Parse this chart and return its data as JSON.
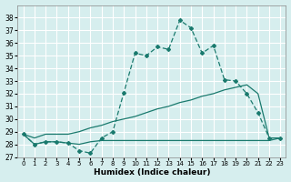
{
  "xlabel": "Humidex (Indice chaleur)",
  "bg_color": "#d6eeee",
  "grid_color": "#ffffff",
  "line_color": "#1a7a6e",
  "xlim": [
    -0.5,
    23.5
  ],
  "ylim": [
    27,
    39
  ],
  "yticks": [
    27,
    28,
    29,
    30,
    31,
    32,
    33,
    34,
    35,
    36,
    37,
    38
  ],
  "xticks": [
    0,
    1,
    2,
    3,
    4,
    5,
    6,
    7,
    8,
    9,
    10,
    11,
    12,
    13,
    14,
    15,
    16,
    17,
    18,
    19,
    20,
    21,
    22,
    23
  ],
  "series0": [
    28.8,
    28.0,
    28.2,
    28.2,
    28.1,
    27.5,
    27.3,
    28.5,
    29.0,
    32.1,
    35.2,
    35.0,
    35.7,
    35.5,
    37.8,
    37.2,
    35.2,
    35.8,
    33.1,
    33.0,
    32.0,
    30.5,
    28.5,
    28.5
  ],
  "series1": [
    28.8,
    28.0,
    28.2,
    28.2,
    28.1,
    28.0,
    28.2,
    28.3,
    28.3,
    28.3,
    28.3,
    28.3,
    28.3,
    28.3,
    28.3,
    28.3,
    28.3,
    28.3,
    28.3,
    28.3,
    28.3,
    28.3,
    28.3,
    28.5
  ],
  "series2": [
    28.8,
    28.5,
    28.8,
    28.8,
    28.8,
    29.0,
    29.3,
    29.5,
    29.8,
    30.0,
    30.2,
    30.5,
    30.8,
    31.0,
    31.3,
    31.5,
    31.8,
    32.0,
    32.3,
    32.5,
    32.7,
    32.0,
    28.5,
    28.5
  ]
}
